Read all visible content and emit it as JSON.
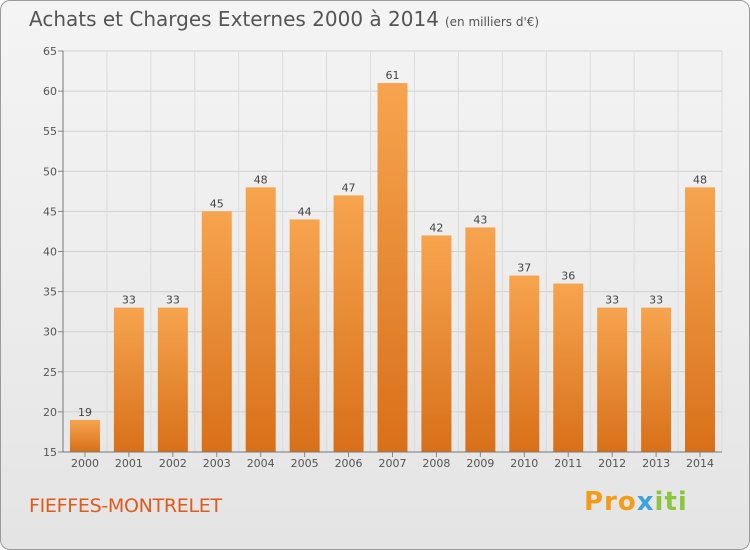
{
  "header": {
    "title": "Achats et Charges Externes 2000 à 2014",
    "unit": "(en milliers d'€)"
  },
  "footer": {
    "commune": "FIEFFES-MONTRELET",
    "logo": "Proxiti"
  },
  "colors": {
    "bar_light": "#f7a44f",
    "bar_dark": "#d87019",
    "commune_text": "#e05a1a"
  },
  "chart_data": {
    "type": "bar",
    "title": "Achats et Charges Externes 2000 à 2014",
    "subtitle": "(en milliers d'€)",
    "categories": [
      "2000",
      "2001",
      "2002",
      "2003",
      "2004",
      "2005",
      "2006",
      "2007",
      "2008",
      "2009",
      "2010",
      "2011",
      "2012",
      "2013",
      "2014"
    ],
    "values": [
      19,
      33,
      33,
      45,
      48,
      44,
      47,
      61,
      42,
      43,
      37,
      36,
      33,
      33,
      48
    ],
    "ylim": [
      15,
      65
    ],
    "yticks": [
      15,
      20,
      25,
      30,
      35,
      40,
      45,
      50,
      55,
      60,
      65
    ],
    "grid": true,
    "data_labels": true
  }
}
